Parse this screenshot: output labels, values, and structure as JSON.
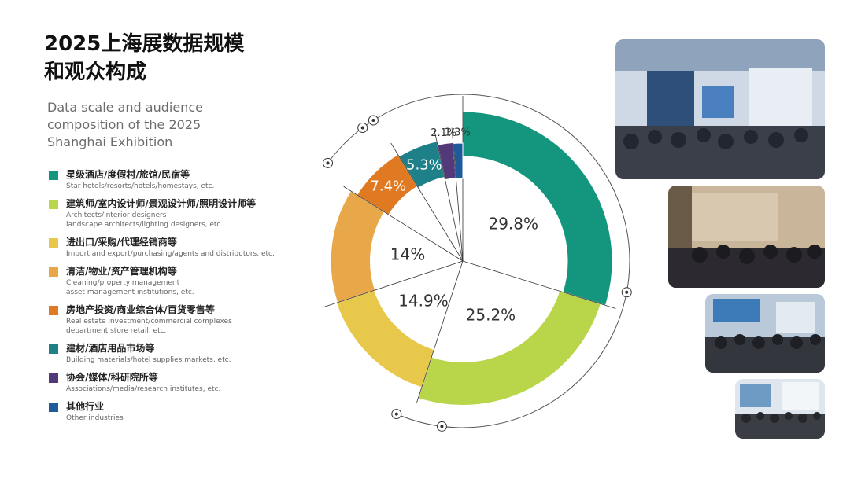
{
  "header": {
    "title_line1": "2025上海展数据规模",
    "title_line2": "和观众构成",
    "subtitle": "Data scale and audience composition of the 2025 Shanghai Exhibition"
  },
  "legend": [
    {
      "zh": "星级酒店/度假村/旅馆/民宿等",
      "en": "Star hotels/resorts/hotels/homestays, etc.",
      "color": "#14967E"
    },
    {
      "zh": "建筑师/室内设计师/景观设计师/照明设计师等",
      "en": "Architects/interior designers\nlandscape architects/lighting designers, etc.",
      "color": "#B9D64B"
    },
    {
      "zh": "进出口/采购/代理经销商等",
      "en": "Import and export/purchasing/agents and distributors, etc.",
      "color": "#E8C84A"
    },
    {
      "zh": "清洁/物业/资产管理机构等",
      "en": "Cleaning/property management\nasset management institutions, etc.",
      "color": "#E8A84A"
    },
    {
      "zh": "房地产投资/商业综合体/百货零售等",
      "en": "Real estate investment/commercial complexes\ndepartment store retail, etc.",
      "color": "#E07A22"
    },
    {
      "zh": "建材/酒店用品市场等",
      "en": "Building materials/hotel supplies markets, etc.",
      "color": "#1E8089"
    },
    {
      "zh": "协会/媒体/科研院所等",
      "en": "Associations/media/research institutes, etc.",
      "color": "#52397A"
    },
    {
      "zh": "其他行业",
      "en": "Other industries",
      "color": "#1F5A9A"
    }
  ],
  "chart_data": {
    "type": "pie",
    "style": "nightingale-donut",
    "categories": [
      "星级酒店/度假村/旅馆/民宿等",
      "建筑师/室内设计师/景观设计师/照明设计师等",
      "进出口/采购/代理经销商等",
      "清洁/物业/资产管理机构等",
      "房地产投资/商业综合体/百货零售等",
      "建材/酒店用品市场等",
      "协会/媒体/科研院所等",
      "其他行业"
    ],
    "values": [
      29.8,
      25.2,
      14.9,
      14,
      7.4,
      5.3,
      2.1,
      1.3
    ],
    "labels": [
      "29.8%",
      "25.2%",
      "14.9%",
      "14%",
      "7.4%",
      "5.3%",
      "2.1%",
      "1.3%"
    ],
    "colors": [
      "#14967E",
      "#B9D64B",
      "#E8C84A",
      "#E8A84A",
      "#E07A22",
      "#1E8089",
      "#52397A",
      "#1F5A9A"
    ],
    "unit": "%"
  },
  "photos": [
    {
      "name": "exhibition-hall-photo-1",
      "accent": "#3b6fb3"
    },
    {
      "name": "exhibition-hall-photo-2",
      "accent": "#8a6b4a"
    },
    {
      "name": "exhibition-hall-photo-3",
      "accent": "#3c7ab8"
    },
    {
      "name": "exhibition-hall-photo-4",
      "accent": "#6d9bc4"
    }
  ]
}
